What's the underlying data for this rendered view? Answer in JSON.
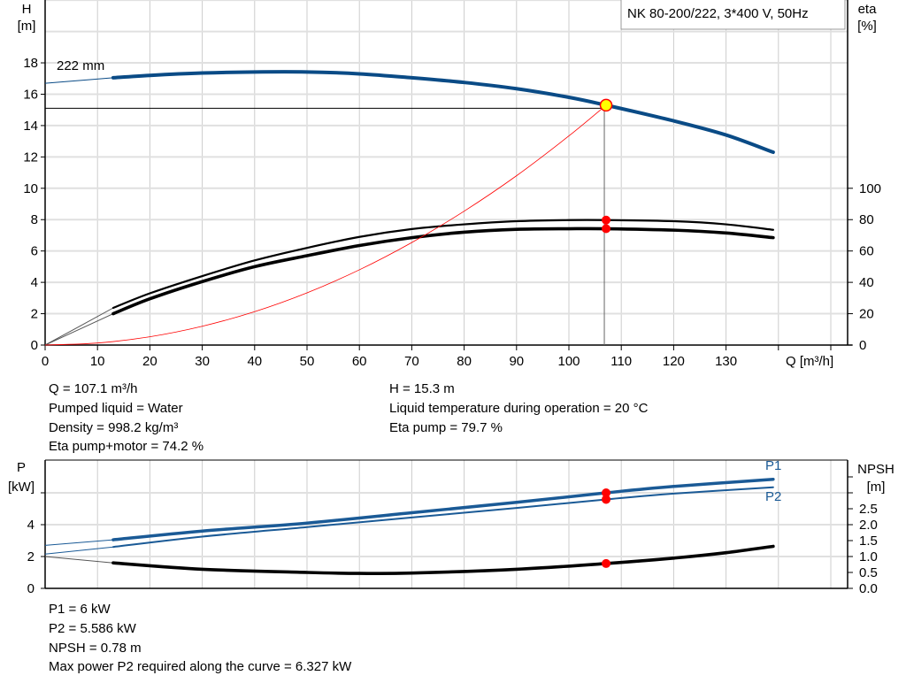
{
  "title": "NK 80-200/222, 3*400 V, 50Hz",
  "colors": {
    "head": "#0a4b86",
    "power": "#1a5a96",
    "eta": "#000000",
    "system": "#ff0000",
    "point": "#ff0000",
    "duty_point": "#ffff00",
    "grid": "#cccccc"
  },
  "chart_data": [
    {
      "type": "line",
      "xlabel": "Q [m³/h]",
      "ylabel": "H",
      "ylabel_unit": "[m]",
      "y2label": "eta",
      "y2label_unit": "[%]",
      "xlim": [
        0,
        150
      ],
      "ylim": [
        0,
        22
      ],
      "y2lim": [
        0,
        220
      ],
      "grid": true,
      "x_ticks": [
        "0",
        "10",
        "20",
        "30",
        "40",
        "50",
        "60",
        "70",
        "80",
        "90",
        "100",
        "110",
        "120",
        "130"
      ],
      "y_ticks": [
        "0",
        "2",
        "4",
        "6",
        "8",
        "10",
        "12",
        "14",
        "16",
        "18"
      ],
      "y2_ticks": [
        "0",
        "20",
        "40",
        "60",
        "80",
        "100"
      ],
      "annotation": "222 mm",
      "duty_point": {
        "Q": 107.1,
        "H": 15.3
      },
      "series": [
        {
          "id": "head",
          "axis": "H",
          "x": [
            0,
            13,
            20,
            30,
            40,
            50,
            60,
            70,
            80,
            90,
            100,
            107.1,
            120,
            130,
            139
          ],
          "y": [
            16.7,
            17.05,
            17.2,
            17.35,
            17.42,
            17.42,
            17.3,
            17.05,
            16.75,
            16.35,
            15.8,
            15.3,
            14.3,
            13.4,
            12.3
          ],
          "extrapolated_until": 13
        },
        {
          "id": "eta-pump",
          "axis": "eta",
          "x": [
            0,
            13,
            20,
            30,
            40,
            50,
            60,
            70,
            80,
            90,
            100,
            107.1,
            120,
            130,
            139
          ],
          "y": [
            0,
            23.7,
            33,
            44,
            54,
            62,
            69,
            74,
            77,
            79,
            79.7,
            79.7,
            79,
            77,
            73.5
          ],
          "extrapolated_until": 13
        },
        {
          "id": "eta-pump-motor",
          "axis": "eta",
          "x": [
            0,
            13,
            20,
            30,
            40,
            50,
            60,
            70,
            80,
            90,
            100,
            107.1,
            120,
            130,
            139
          ],
          "y": [
            0,
            20,
            29.5,
            40.5,
            50,
            57,
            63.5,
            68.5,
            72,
            73.8,
            74.2,
            74.2,
            73.3,
            71.5,
            68.5
          ],
          "extrapolated_until": 13
        },
        {
          "id": "system-curve",
          "axis": "H",
          "x": [
            0,
            10,
            20,
            30,
            40,
            50,
            60,
            70,
            80,
            90,
            100,
            107.1
          ],
          "y": [
            0,
            0.13,
            0.53,
            1.2,
            2.13,
            3.33,
            4.8,
            6.54,
            8.54,
            10.8,
            13.34,
            15.3
          ]
        }
      ]
    },
    {
      "type": "line",
      "ylabel": "P",
      "ylabel_unit": "[kW]",
      "y2label": "NPSH",
      "y2label_unit": "[m]",
      "xlim": [
        0,
        150
      ],
      "ylim": [
        0,
        8
      ],
      "y2lim": [
        0,
        4
      ],
      "grid": true,
      "y_ticks": [
        "0",
        "2",
        "4"
      ],
      "y2_ticks": [
        "0.0",
        "0.5",
        "1.0",
        "1.5",
        "2.0",
        "2.5"
      ],
      "series": [
        {
          "id": "P1",
          "name": "P1",
          "axis": "P",
          "x": [
            0,
            13,
            30,
            50,
            70,
            90,
            107.1,
            120,
            139
          ],
          "y": [
            2.7,
            3.05,
            3.6,
            4.1,
            4.75,
            5.4,
            6.0,
            6.4,
            6.85
          ],
          "extrapolated_until": 13
        },
        {
          "id": "P2",
          "name": "P2",
          "axis": "P",
          "x": [
            0,
            13,
            30,
            50,
            70,
            90,
            107.1,
            120,
            139
          ],
          "y": [
            2.15,
            2.6,
            3.25,
            3.85,
            4.45,
            5.05,
            5.586,
            5.95,
            6.35
          ],
          "extrapolated_until": 13
        },
        {
          "id": "NPSH",
          "axis": "NPSH",
          "x": [
            0,
            13,
            30,
            50,
            60,
            70,
            90,
            107.1,
            120,
            130,
            139
          ],
          "y": [
            1.0,
            0.8,
            0.6,
            0.5,
            0.47,
            0.48,
            0.6,
            0.78,
            0.95,
            1.12,
            1.32
          ],
          "extrapolated_until": 13
        }
      ]
    }
  ],
  "results_top": {
    "q": "Q = 107.1 m³/h",
    "liquid": "Pumped liquid = Water",
    "density": "Density = 998.2 kg/m³",
    "eta_pm": "Eta pump+motor = 74.2 %",
    "h": "H = 15.3 m",
    "temp": "Liquid temperature during operation = 20 °C",
    "eta_p": "Eta pump = 79.7 %"
  },
  "results_bottom": {
    "p1": "P1 = 6 kW",
    "p2": "P2 = 5.586 kW",
    "npsh": "NPSH = 0.78 m",
    "max_p2": "Max power P2 required along the curve = 6.327 kW"
  }
}
